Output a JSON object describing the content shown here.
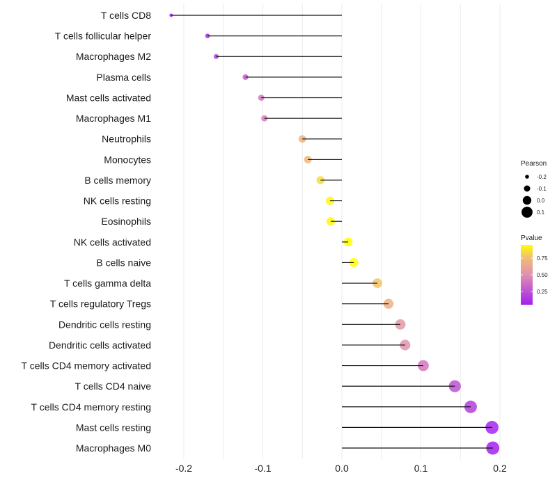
{
  "chart_data": {
    "type": "lollipop",
    "title": "",
    "xlabel": "",
    "ylabel": "",
    "xlim": [
      -0.225,
      0.215
    ],
    "xticks": [
      -0.2,
      -0.1,
      0.0,
      0.1,
      0.2
    ],
    "xtick_labels": [
      "-0.2",
      "-0.1",
      "0.0",
      "0.1",
      "0.2"
    ],
    "grid": true,
    "categories": [
      "T cells CD8",
      "T cells follicular helper",
      "Macrophages M2",
      "Plasma cells",
      "Mast cells activated",
      "Macrophages M1",
      "Neutrophils",
      "Monocytes",
      "B cells memory",
      "NK cells resting",
      "Eosinophils",
      "NK cells activated",
      "B cells naive",
      "T cells gamma delta",
      "T cells regulatory  Tregs ",
      "Dendritic cells resting",
      "Dendritic cells activated",
      "T cells CD4 memory activated",
      "T cells CD4 naive",
      "T cells CD4 memory resting",
      "Mast cells resting",
      "Macrophages M0"
    ],
    "values": [
      -0.216,
      -0.17,
      -0.159,
      -0.122,
      -0.102,
      -0.098,
      -0.05,
      -0.043,
      -0.027,
      -0.015,
      -0.014,
      0.008,
      0.015,
      0.045,
      0.059,
      0.074,
      0.08,
      0.103,
      0.143,
      0.163,
      0.19,
      0.191
    ],
    "pvalues": [
      0.05,
      0.12,
      0.15,
      0.3,
      0.4,
      0.42,
      0.7,
      0.72,
      0.85,
      0.93,
      0.93,
      0.95,
      0.95,
      0.78,
      0.68,
      0.55,
      0.52,
      0.4,
      0.25,
      0.18,
      0.08,
      0.06
    ],
    "legend": {
      "size": {
        "title": "Pearson",
        "labels": [
          "-0.2",
          "-0.1",
          "0.0",
          "0.1"
        ],
        "values": [
          -0.2,
          -0.1,
          0.0,
          0.1
        ]
      },
      "color": {
        "title": "Pvalue",
        "labels": [
          "0.75",
          "0.50",
          "0.25"
        ],
        "values": [
          0.75,
          0.5,
          0.25
        ],
        "range": [
          0.05,
          0.95
        ],
        "low_color": "#a020f0",
        "mid_color": "#e089b0",
        "high_color": "#ffff00"
      },
      "placement": "right"
    }
  }
}
